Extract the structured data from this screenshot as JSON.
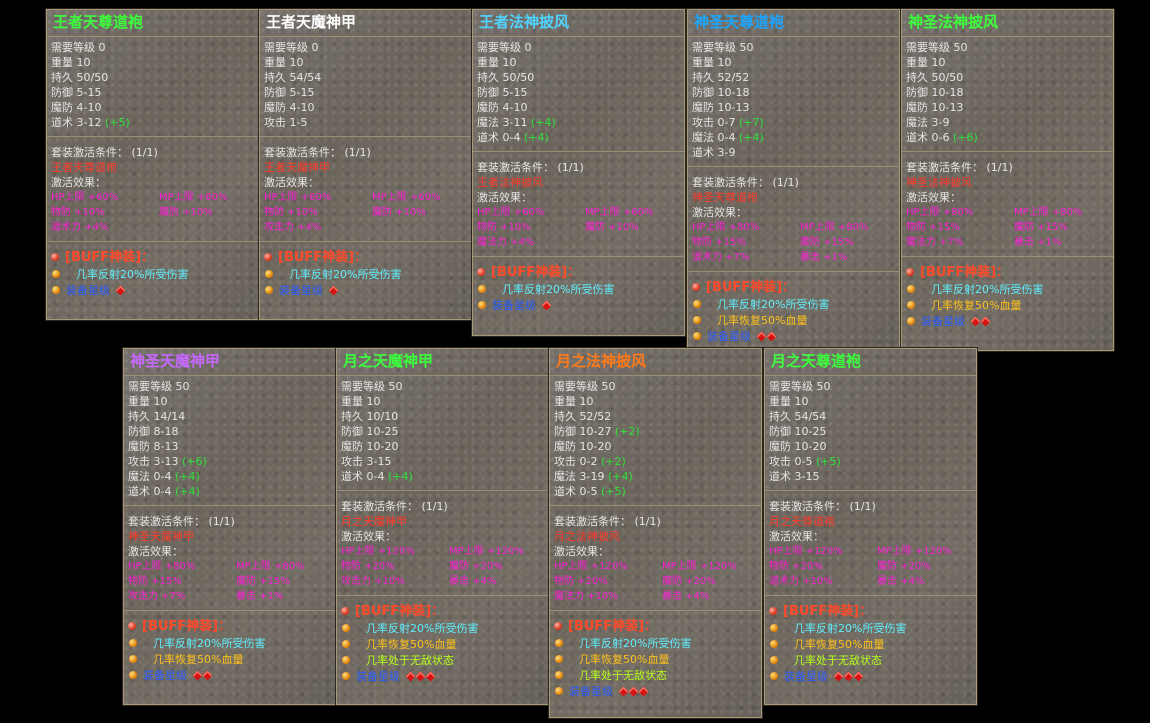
{
  "cards": [
    {
      "title": "王者天尊道袍",
      "title_color": "#3cff3c",
      "stats": [
        [
          "需要等级 0",
          ""
        ],
        [
          "重量 10",
          ""
        ],
        [
          "持久 50/50",
          ""
        ],
        [
          "防御 5-15",
          ""
        ],
        [
          "魔防 4-10",
          ""
        ],
        [
          "道术 3-12 ",
          "(+5)"
        ]
      ],
      "set_label": "套装激活条件：",
      "set_count": "(1/1)",
      "set_name": "王者天尊道袍",
      "effect_label": "激活效果：",
      "effects": [
        "HP上限 +60%",
        "MP上限 +60%",
        "物防 +10%",
        "魔防 +10%",
        "道术力 +4%"
      ],
      "buff_title": "[BUFF神装]：",
      "buffs": [
        {
          "text": "几率反射20%所受伤害",
          "color": "cyan"
        },
        {
          "text": "装备星级",
          "color": "blue",
          "gems": 1
        }
      ]
    },
    {
      "title": "王者天魔神甲",
      "title_color": "#ffffff",
      "stats": [
        [
          "需要等级 0",
          ""
        ],
        [
          "重量 10",
          ""
        ],
        [
          "持久 54/54",
          ""
        ],
        [
          "防御 5-15",
          ""
        ],
        [
          "魔防 4-10",
          ""
        ],
        [
          "攻击 1-5",
          ""
        ]
      ],
      "set_label": "套装激活条件：",
      "set_count": "(1/1)",
      "set_name": "王者天魔神甲",
      "effect_label": "激活效果：",
      "effects": [
        "HP上限 +60%",
        "MP上限 +60%",
        "物防 +10%",
        "魔防 +10%",
        "攻击力 +4%"
      ],
      "buff_title": "[BUFF神装]：",
      "buffs": [
        {
          "text": "几率反射20%所受伤害",
          "color": "cyan"
        },
        {
          "text": "装备星级",
          "color": "blue",
          "gems": 1
        }
      ]
    },
    {
      "title": "王者法神披风",
      "title_color": "#4fd4ff",
      "stats": [
        [
          "需要等级 0",
          ""
        ],
        [
          "重量 10",
          ""
        ],
        [
          "持久 50/50",
          ""
        ],
        [
          "防御 5-15",
          ""
        ],
        [
          "魔防 4-10",
          ""
        ],
        [
          "魔法 3-11 ",
          "(+4)"
        ],
        [
          "道术 0-4 ",
          "(+4)"
        ]
      ],
      "set_label": "套装激活条件：",
      "set_count": "(1/1)",
      "set_name": "王者法神披风",
      "effect_label": "激活效果：",
      "effects": [
        "HP上限 +60%",
        "MP上限 +60%",
        "物防 +10%",
        "魔防 +10%",
        "魔法力 +4%"
      ],
      "buff_title": "[BUFF神装]：",
      "buffs": [
        {
          "text": "几率反射20%所受伤害",
          "color": "cyan"
        },
        {
          "text": "装备星级",
          "color": "blue",
          "gems": 1
        }
      ]
    },
    {
      "title": "神圣天尊道袍",
      "title_color": "#1aa6ff",
      "stats": [
        [
          "需要等级 50",
          ""
        ],
        [
          "重量 10",
          ""
        ],
        [
          "持久 52/52",
          ""
        ],
        [
          "防御 10-18",
          ""
        ],
        [
          "魔防 10-13",
          ""
        ],
        [
          "攻击 0-7 ",
          "(+7)"
        ],
        [
          "魔法 0-4 ",
          "(+4)"
        ],
        [
          "道术 3-9",
          ""
        ]
      ],
      "set_label": "套装激活条件：",
      "set_count": "(1/1)",
      "set_name": "神圣天尊道袍",
      "effect_label": "激活效果：",
      "effects": [
        "HP上限 +80%",
        "MP上限 +80%",
        "物防 +15%",
        "魔防 +15%",
        "道术力 +7%",
        "暴击 +1%"
      ],
      "buff_title": "[BUFF神装]：",
      "buffs": [
        {
          "text": "几率反射20%所受伤害",
          "color": "cyan"
        },
        {
          "text": "几率恢复50%血量",
          "color": "gold"
        },
        {
          "text": "装备星级",
          "color": "blue",
          "gems": 2
        }
      ]
    },
    {
      "title": "神圣法神披风",
      "title_color": "#3cff3c",
      "stats": [
        [
          "需要等级 50",
          ""
        ],
        [
          "重量 10",
          ""
        ],
        [
          "持久 50/50",
          ""
        ],
        [
          "防御 10-18",
          ""
        ],
        [
          "魔防 10-13",
          ""
        ],
        [
          "魔法 3-9",
          ""
        ],
        [
          "道术 0-6 ",
          "(+6)"
        ]
      ],
      "set_label": "套装激活条件：",
      "set_count": "(1/1)",
      "set_name": "神圣法神披风",
      "effect_label": "激活效果：",
      "effects": [
        "HP上限 +80%",
        "MP上限 +80%",
        "物防 +15%",
        "魔防 +15%",
        "魔法力 +7%",
        "暴击 +1%"
      ],
      "buff_title": "[BUFF神装]：",
      "buffs": [
        {
          "text": "几率反射20%所受伤害",
          "color": "cyan"
        },
        {
          "text": "几率恢复50%血量",
          "color": "gold"
        },
        {
          "text": "装备星级",
          "color": "blue",
          "gems": 2
        }
      ]
    },
    {
      "title": "神圣天魔神甲",
      "title_color": "#c768ff",
      "stats": [
        [
          "需要等级 50",
          ""
        ],
        [
          "重量 10",
          ""
        ],
        [
          "持久 14/14",
          ""
        ],
        [
          "防御 8-18",
          ""
        ],
        [
          "魔防 8-13",
          ""
        ],
        [
          "攻击 3-13 ",
          "(+6)"
        ],
        [
          "魔法 0-4 ",
          "(+4)"
        ],
        [
          "道术 0-4 ",
          "(+4)"
        ]
      ],
      "set_label": "套装激活条件：",
      "set_count": "(1/1)",
      "set_name": "神圣天魔神甲",
      "effect_label": "激活效果：",
      "effects": [
        "HP上限 +80%",
        "MP上限 +80%",
        "物防 +15%",
        "魔防 +15%",
        "攻击力 +7%",
        "暴击 +1%"
      ],
      "buff_title": "[BUFF神装]：",
      "buffs": [
        {
          "text": "几率反射20%所受伤害",
          "color": "cyan"
        },
        {
          "text": "几率恢复50%血量",
          "color": "gold"
        },
        {
          "text": "装备星级",
          "color": "blue",
          "gems": 2
        }
      ]
    },
    {
      "title": "月之天魔神甲",
      "title_color": "#3cff3c",
      "stats": [
        [
          "需要等级 50",
          ""
        ],
        [
          "重量 10",
          ""
        ],
        [
          "持久 10/10",
          ""
        ],
        [
          "防御 10-25",
          ""
        ],
        [
          "魔防 10-20",
          ""
        ],
        [
          "攻击 3-15",
          ""
        ],
        [
          "道术 0-4 ",
          "(+4)"
        ]
      ],
      "set_label": "套装激活条件：",
      "set_count": "(1/1)",
      "set_name": "月之天魔神甲",
      "effect_label": "激活效果：",
      "effects": [
        "HP上限 +120%",
        "MP上限 +120%",
        "物防 +20%",
        "魔防 +20%",
        "攻击力 +10%",
        "暴击 +4%"
      ],
      "buff_title": "[BUFF神装]：",
      "buffs": [
        {
          "text": "几率反射20%所受伤害",
          "color": "cyan"
        },
        {
          "text": "几率恢复50%血量",
          "color": "gold"
        },
        {
          "text": "几率处于无敌状态",
          "color": "lime"
        },
        {
          "text": "装备星级",
          "color": "blue",
          "gems": 3
        }
      ]
    },
    {
      "title": "月之法神披风",
      "title_color": "#ff7a1a",
      "stats": [
        [
          "需要等级 50",
          ""
        ],
        [
          "重量 10",
          ""
        ],
        [
          "持久 52/52",
          ""
        ],
        [
          "防御 10-27 ",
          "(+2)"
        ],
        [
          "魔防 10-20",
          ""
        ],
        [
          "攻击 0-2 ",
          "(+2)"
        ],
        [
          "魔法 3-19 ",
          "(+4)"
        ],
        [
          "道术 0-5 ",
          "(+5)"
        ]
      ],
      "set_label": "套装激活条件：",
      "set_count": "(1/1)",
      "set_name": "月之法神披风",
      "effect_label": "激活效果：",
      "effects": [
        "HP上限 +120%",
        "MP上限 +120%",
        "物防 +20%",
        "魔防 +20%",
        "魔法力 +10%",
        "暴击 +4%"
      ],
      "buff_title": "[BUFF神装]：",
      "buffs": [
        {
          "text": "几率反射20%所受伤害",
          "color": "cyan"
        },
        {
          "text": "几率恢复50%血量",
          "color": "gold"
        },
        {
          "text": "几率处于无敌状态",
          "color": "lime"
        },
        {
          "text": "装备星级",
          "color": "blue",
          "gems": 3
        }
      ]
    },
    {
      "title": "月之天尊道袍",
      "title_color": "#3cff3c",
      "stats": [
        [
          "需要等级 50",
          ""
        ],
        [
          "重量 10",
          ""
        ],
        [
          "持久 54/54",
          ""
        ],
        [
          "防御 10-25",
          ""
        ],
        [
          "魔防 10-20",
          ""
        ],
        [
          "攻击 0-5 ",
          "(+5)"
        ],
        [
          "道术 3-15",
          ""
        ]
      ],
      "set_label": "套装激活条件：",
      "set_count": "(1/1)",
      "set_name": "月之天尊道袍",
      "effect_label": "激活效果：",
      "effects": [
        "HP上限 +120%",
        "MP上限 +120%",
        "物防 +20%",
        "魔防 +20%",
        "道术力 +10%",
        "暴击 +4%"
      ],
      "buff_title": "[BUFF神装]：",
      "buffs": [
        {
          "text": "几率反射20%所受伤害",
          "color": "cyan"
        },
        {
          "text": "几率恢复50%血量",
          "color": "gold"
        },
        {
          "text": "几率处于无敌状态",
          "color": "lime"
        },
        {
          "text": "装备星级",
          "color": "blue",
          "gems": 3
        }
      ]
    }
  ]
}
